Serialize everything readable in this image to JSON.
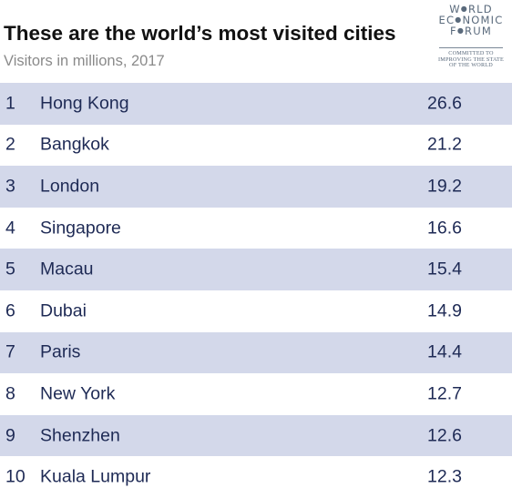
{
  "chart_data": {
    "type": "table",
    "title": "These are the world’s most visited cities",
    "subtitle": "Visitors in millions, 2017",
    "rows": [
      {
        "rank": "1",
        "city": "Hong Kong",
        "value": "26.6"
      },
      {
        "rank": "2",
        "city": "Bangkok",
        "value": "21.2"
      },
      {
        "rank": "3",
        "city": "London",
        "value": "19.2"
      },
      {
        "rank": "4",
        "city": "Singapore",
        "value": "16.6"
      },
      {
        "rank": "5",
        "city": "Macau",
        "value": "15.4"
      },
      {
        "rank": "6",
        "city": "Dubai",
        "value": "14.9"
      },
      {
        "rank": "7",
        "city": "Paris",
        "value": "14.4"
      },
      {
        "rank": "8",
        "city": "New York",
        "value": "12.7"
      },
      {
        "rank": "9",
        "city": "Shenzhen",
        "value": "12.6"
      },
      {
        "rank": "10",
        "city": "Kuala Lumpur",
        "value": "12.3"
      }
    ],
    "colors": {
      "stripe": "#d3d8ea",
      "text": "#1e2a55"
    }
  },
  "logo": {
    "line1": "W",
    "line1b": "RLD",
    "line2": "EC",
    "line2b": "NOMIC",
    "line3": "F",
    "line3b": "RUM",
    "tag1": "COMMITTED TO",
    "tag2": "IMPROVING THE STATE",
    "tag3": "OF THE WORLD"
  }
}
